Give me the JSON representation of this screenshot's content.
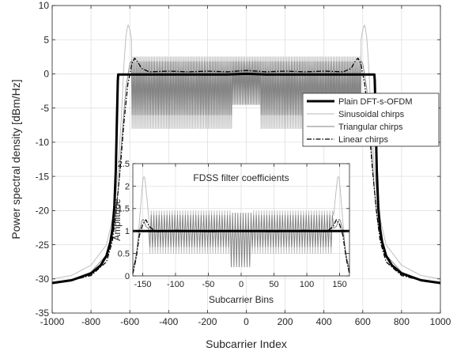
{
  "chart_data": [
    {
      "type": "line",
      "title": "",
      "xlabel": "Subcarrier Index",
      "ylabel": "Power spectral density [dBm/Hz]",
      "xlim": [
        -1000,
        1000
      ],
      "ylim": [
        -35,
        10
      ],
      "xticks": [
        -1000,
        -800,
        -600,
        -400,
        -200,
        0,
        200,
        400,
        600,
        800,
        1000
      ],
      "yticks": [
        -35,
        -30,
        -25,
        -20,
        -15,
        -10,
        -5,
        0,
        5,
        10
      ],
      "xtick_labels": [
        "-1000",
        "-800",
        "-600",
        "-400",
        "-200",
        "0",
        "200",
        "400",
        "600",
        "800",
        "1000"
      ],
      "ytick_labels": [
        "-35",
        "-30",
        "-25",
        "-20",
        "-15",
        "-10",
        "-5",
        "0",
        "5",
        "10"
      ],
      "grid": true,
      "legend_position": "right",
      "series": [
        {
          "name": "Plain DFT-s-OFDM",
          "color": "#000000",
          "style": "thick-solid",
          "x": [
            -1000,
            -900,
            -800,
            -750,
            -720,
            -700,
            -690,
            -680,
            -672,
            -666,
            -662,
            -660,
            -650,
            -600,
            -500,
            -300,
            -100,
            0,
            100,
            300,
            500,
            600,
            650,
            660,
            662,
            666,
            672,
            680,
            690,
            700,
            720,
            750,
            800,
            900,
            1000
          ],
          "y": [
            -30.6,
            -30.2,
            -29.2,
            -28.0,
            -26.6,
            -24.6,
            -22.8,
            -19.5,
            -14.0,
            -6.0,
            -1.0,
            -0.1,
            -0.1,
            -0.1,
            -0.1,
            -0.1,
            -0.1,
            0.0,
            -0.1,
            -0.1,
            -0.1,
            -0.1,
            -0.1,
            -0.1,
            -1.0,
            -6.0,
            -14.0,
            -19.5,
            -22.8,
            -24.6,
            -26.6,
            -28.0,
            -29.2,
            -30.2,
            -30.6
          ]
        },
        {
          "name": "Sinusoidal chirps",
          "color": "#b8b8b8",
          "style": "thin-solid",
          "x": [
            -1000,
            -900,
            -800,
            -720,
            -680,
            -660,
            -645,
            -630,
            -620,
            -610,
            -600,
            -580,
            -560,
            -540,
            -520,
            -500,
            -400,
            -300,
            -200,
            -100,
            0,
            100,
            200,
            300,
            400,
            500,
            520,
            540,
            560,
            580,
            600,
            610,
            620,
            630,
            645,
            660,
            680,
            720,
            800,
            900,
            1000
          ],
          "y": [
            -30.0,
            -29.5,
            -28.0,
            -25.0,
            -20.0,
            -14.0,
            -7.0,
            1.5,
            5.5,
            7.3,
            6.5,
            3.0,
            4.5,
            2.5,
            4.0,
            2.0,
            3.2,
            3.0,
            3.0,
            3.0,
            2.8,
            3.0,
            3.0,
            3.0,
            3.2,
            2.0,
            4.0,
            2.5,
            4.5,
            3.0,
            6.5,
            7.3,
            5.5,
            1.5,
            -7.0,
            -14.0,
            -20.0,
            -25.0,
            -28.0,
            -29.5,
            -30.0
          ],
          "oscillation": {
            "region": [
              -590,
              590
            ],
            "peak_dB": 2.5,
            "trough_dB": -8.0,
            "center_depth_dB": -3.0
          }
        },
        {
          "name": "Triangular chirps",
          "color": "#808080",
          "style": "thin-solid",
          "x": [
            -1000,
            -900,
            -800,
            -720,
            -680,
            -660,
            -640,
            -620,
            -600,
            -580,
            -560,
            -400,
            -200,
            0,
            200,
            400,
            560,
            580,
            600,
            620,
            640,
            660,
            680,
            720,
            800,
            900,
            1000
          ],
          "y": [
            -30.5,
            -30.1,
            -29.0,
            -26.5,
            -22.5,
            -17.0,
            -9.0,
            -2.0,
            1.5,
            2.5,
            1.8,
            1.6,
            1.6,
            1.7,
            1.6,
            1.6,
            1.8,
            2.5,
            1.5,
            -2.0,
            -9.0,
            -17.0,
            -22.5,
            -26.5,
            -29.0,
            -30.1,
            -30.5
          ],
          "oscillation": {
            "region": [
              -590,
              590
            ],
            "peak_dB": 1.8,
            "trough_dB": -6.0,
            "center_depth_dB": -4.5
          }
        },
        {
          "name": "Linear chirps",
          "color": "#000000",
          "style": "dash-dot",
          "x": [
            -1000,
            -900,
            -800,
            -720,
            -690,
            -670,
            -650,
            -630,
            -610,
            -590,
            -575,
            -560,
            -540,
            -500,
            -400,
            -300,
            -200,
            -100,
            0,
            100,
            200,
            300,
            400,
            500,
            540,
            560,
            575,
            590,
            610,
            630,
            650,
            670,
            690,
            720,
            800,
            900,
            1000
          ],
          "y": [
            -30.5,
            -30.2,
            -29.5,
            -27.5,
            -24.5,
            -20.0,
            -14.0,
            -7.0,
            -1.5,
            1.5,
            2.3,
            1.8,
            0.8,
            0.3,
            0.4,
            0.3,
            0.4,
            0.3,
            0.5,
            0.3,
            0.4,
            0.3,
            0.4,
            0.3,
            0.8,
            1.8,
            2.3,
            1.5,
            -1.5,
            -7.0,
            -14.0,
            -20.0,
            -24.5,
            -27.5,
            -29.5,
            -30.2,
            -30.5
          ]
        }
      ]
    },
    {
      "type": "line",
      "title": "FDSS filter coefficients",
      "xlabel": "Subcarrier Bins",
      "ylabel": "Amplitude",
      "xlim": [
        -165,
        165
      ],
      "ylim": [
        0,
        2.5
      ],
      "xticks": [
        -150,
        -100,
        -50,
        0,
        50,
        100,
        150
      ],
      "yticks": [
        0,
        0.5,
        1,
        1.5,
        2,
        2.5
      ],
      "xtick_labels": [
        "-150",
        "-100",
        "-50",
        "0",
        "50",
        "100",
        "150"
      ],
      "ytick_labels": [
        "0",
        "0.5",
        "1",
        "1.5",
        "2",
        "2.5"
      ],
      "grid": true,
      "series": [
        {
          "name": "Plain DFT-s-OFDM",
          "color": "#000000",
          "style": "thick-solid",
          "x": [
            -165,
            165
          ],
          "y": [
            1.0,
            1.0
          ]
        },
        {
          "name": "Sinusoidal chirps",
          "color": "#b8b8b8",
          "style": "thin-solid",
          "x": [
            -165,
            -160,
            -155,
            -150,
            -148,
            -146,
            -140,
            -130,
            -120,
            120,
            130,
            140,
            146,
            148,
            150,
            155,
            160,
            165
          ],
          "y": [
            0.08,
            0.35,
            1.2,
            2.1,
            2.3,
            2.1,
            1.2,
            1.75,
            1.6,
            1.6,
            1.75,
            1.2,
            2.1,
            2.3,
            2.1,
            1.2,
            0.35,
            0.08
          ],
          "oscillation": {
            "region": [
              -140,
              140
            ],
            "peak": 1.45,
            "trough": 0.5,
            "center_peak": 1.3,
            "center_trough": 0.55
          }
        },
        {
          "name": "Triangular chirps",
          "color": "#808080",
          "style": "thin-solid",
          "x": [
            -165,
            -160,
            -155,
            -150,
            -145,
            -140,
            -130,
            130,
            140,
            145,
            150,
            155,
            160,
            165
          ],
          "y": [
            0.15,
            0.45,
            1.0,
            1.3,
            1.1,
            1.05,
            1.25,
            1.25,
            1.05,
            1.1,
            1.3,
            1.0,
            0.45,
            0.15
          ],
          "oscillation": {
            "region": [
              -140,
              140
            ],
            "peak": 1.35,
            "trough": 0.65,
            "center_peak": 1.4,
            "center_trough": 0.2
          }
        },
        {
          "name": "Linear chirps",
          "color": "#000000",
          "style": "dash-dot",
          "x": [
            -165,
            -160,
            -155,
            -150,
            -145,
            -140,
            -130,
            -100,
            -50,
            0,
            50,
            100,
            130,
            140,
            145,
            150,
            155,
            160,
            165
          ],
          "y": [
            0.05,
            0.4,
            0.9,
            1.15,
            1.25,
            1.1,
            0.98,
            1.02,
            0.98,
            1.0,
            0.98,
            1.02,
            0.98,
            1.1,
            1.25,
            1.15,
            0.9,
            0.4,
            0.05
          ]
        }
      ]
    }
  ]
}
